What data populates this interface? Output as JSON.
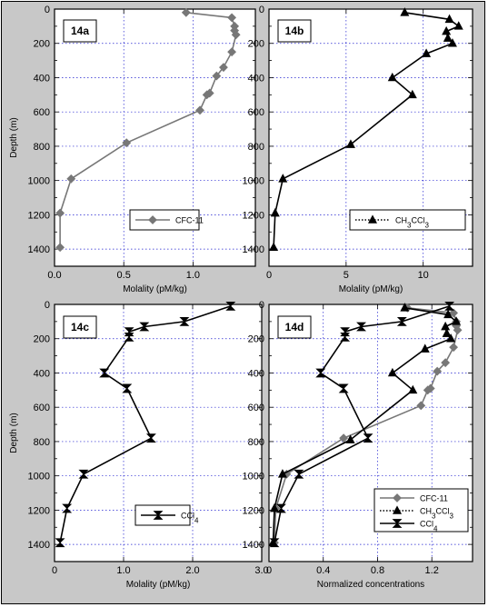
{
  "figure": {
    "depth_axis_label": "Depth  (m)"
  },
  "chart_data": [
    {
      "id": "14a",
      "type": "line",
      "panel_label": "14a",
      "xlabel": "Molality   (pM/kg)",
      "ylabel": "Depth  (m)",
      "xlim": [
        0,
        1.45
      ],
      "ylim": [
        1500,
        0
      ],
      "xticks": [
        0,
        0.5,
        1.0
      ],
      "xtick_labels": [
        "0.0",
        "0.5",
        "1.0"
      ],
      "yticks": [
        0,
        200,
        400,
        600,
        800,
        1000,
        1200,
        1400
      ],
      "grid": true,
      "legend": "bottom-right",
      "series": [
        {
          "name": "CFC-11",
          "color": "#777777",
          "marker": "diamond",
          "dash": "solid",
          "x": [
            0.95,
            1.28,
            1.3,
            1.3,
            1.31,
            1.28,
            1.22,
            1.17,
            1.12,
            1.1,
            1.05,
            0.52,
            0.12,
            0.04,
            0.04
          ],
          "y": [
            20,
            50,
            100,
            125,
            150,
            250,
            340,
            390,
            490,
            500,
            590,
            780,
            990,
            1190,
            1390
          ]
        }
      ]
    },
    {
      "id": "14b",
      "type": "line",
      "panel_label": "14b",
      "xlabel": "Molality   (pM/kg)",
      "ylabel": "",
      "xlim": [
        0,
        13.2
      ],
      "ylim": [
        1500,
        0
      ],
      "xticks": [
        0,
        5,
        10
      ],
      "xtick_labels": [
        "0",
        "5",
        "10"
      ],
      "yticks": [
        0,
        200,
        400,
        600,
        800,
        1000,
        1200,
        1400
      ],
      "grid": true,
      "legend": "bottom-right",
      "series": [
        {
          "name": "CH3CCl3",
          "color": "#000000",
          "marker": "triangle",
          "dash": "dotted",
          "x": [
            8.8,
            11.7,
            12.3,
            11.5,
            11.6,
            11.9,
            10.2,
            8.0,
            9.3,
            5.3,
            0.9,
            0.4,
            0.3
          ],
          "y": [
            20,
            60,
            100,
            130,
            170,
            200,
            260,
            400,
            500,
            790,
            990,
            1190,
            1390
          ]
        }
      ]
    },
    {
      "id": "14c",
      "type": "line",
      "panel_label": "14c",
      "xlabel": "Molality   (pM/kg)",
      "ylabel": "Depth  (m)",
      "xlim": [
        0,
        3.0
      ],
      "ylim": [
        1500,
        0
      ],
      "xticks": [
        0,
        1.0,
        2.0,
        3.0
      ],
      "xtick_labels": [
        "0",
        "1.0",
        "2.0",
        "3.0"
      ],
      "yticks": [
        0,
        200,
        400,
        600,
        800,
        1000,
        1200,
        1400
      ],
      "grid": true,
      "legend": "bottom-right",
      "series": [
        {
          "name": "CCl4",
          "color": "#000000",
          "marker": "hourglass",
          "dash": "solid",
          "x": [
            2.55,
            1.88,
            1.3,
            1.08,
            1.08,
            0.72,
            1.05,
            1.4,
            0.42,
            0.18,
            0.08
          ],
          "y": [
            10,
            100,
            130,
            160,
            190,
            400,
            490,
            780,
            990,
            1190,
            1390
          ]
        }
      ]
    },
    {
      "id": "14d",
      "type": "line",
      "panel_label": "14d",
      "xlabel": "Normalized concentrations",
      "ylabel": "",
      "xlim": [
        0,
        1.5
      ],
      "ylim": [
        1500,
        0
      ],
      "xticks": [
        0,
        0.4,
        0.8,
        1.2
      ],
      "xtick_labels": [
        "0",
        "0.4",
        "0.8",
        "1.2"
      ],
      "yticks": [
        0,
        200,
        400,
        600,
        800,
        1000,
        1200,
        1400
      ],
      "grid": true,
      "legend": "bottom-right",
      "series": [
        {
          "name": "CFC-11",
          "color": "#777777",
          "marker": "diamond",
          "dash": "solid",
          "x": [
            1.02,
            1.36,
            1.38,
            1.38,
            1.39,
            1.36,
            1.3,
            1.24,
            1.19,
            1.17,
            1.12,
            0.55,
            0.13,
            0.05,
            0.04
          ],
          "y": [
            20,
            50,
            100,
            125,
            150,
            250,
            340,
            390,
            490,
            500,
            590,
            780,
            990,
            1190,
            1390
          ]
        },
        {
          "name": "CH3CCl3",
          "color": "#000000",
          "marker": "triangle",
          "dash": "dotted",
          "x": [
            1.0,
            1.32,
            1.38,
            1.3,
            1.31,
            1.34,
            1.15,
            0.91,
            1.06,
            0.6,
            0.1,
            0.04,
            0.03
          ],
          "y": [
            20,
            60,
            100,
            130,
            170,
            200,
            260,
            400,
            500,
            790,
            990,
            1190,
            1390
          ]
        },
        {
          "name": "CCl4",
          "color": "#000000",
          "marker": "hourglass",
          "dash": "solid",
          "x": [
            1.33,
            0.98,
            0.68,
            0.56,
            0.56,
            0.38,
            0.55,
            0.73,
            0.22,
            0.09,
            0.04
          ],
          "y": [
            10,
            100,
            130,
            160,
            190,
            400,
            490,
            780,
            990,
            1190,
            1390
          ]
        }
      ]
    }
  ]
}
